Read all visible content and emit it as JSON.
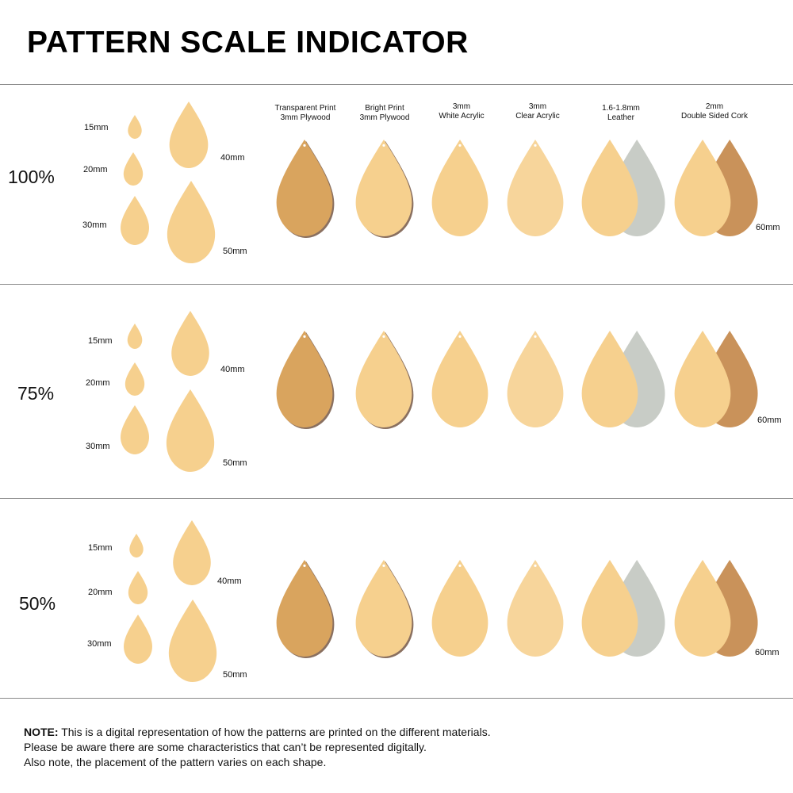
{
  "title": "PATTERN SCALE INDICATOR",
  "colors": {
    "red": "#c8282b",
    "green": "#6f8a2a",
    "orange": "#e8862a",
    "cream": "#f6d08e",
    "plywood": "#d9a45e",
    "cork": "#c9925a",
    "suede": "#c8ccc6",
    "acrylic_edge": "#8a7060"
  },
  "materials": [
    {
      "line1": "Transparent Print",
      "line2": "3mm Plywood"
    },
    {
      "line1": "Bright Print",
      "line2": "3mm Plywood"
    },
    {
      "line1": "3mm",
      "line2": "White Acrylic"
    },
    {
      "line1": "3mm",
      "line2": "Clear Acrylic"
    },
    {
      "line1": "1.6-1.8mm",
      "line2": "Leather"
    },
    {
      "line1": "2mm",
      "line2": "Double Sided Cork"
    }
  ],
  "sections": [
    {
      "scale": "100%",
      "sizes": [
        "15mm",
        "20mm",
        "30mm",
        "40mm",
        "50mm"
      ],
      "material_size": "60mm"
    },
    {
      "scale": "75%",
      "sizes": [
        "15mm",
        "20mm",
        "30mm",
        "40mm",
        "50mm"
      ],
      "material_size": "60mm"
    },
    {
      "scale": "50%",
      "sizes": [
        "15mm",
        "20mm",
        "30mm",
        "40mm",
        "50mm"
      ],
      "material_size": "60mm"
    }
  ],
  "note": {
    "label": "NOTE:",
    "line1": " This is a digital representation of how the patterns are printed on the different materials.",
    "line2": "Please be aware there are some characteristics that can’t be represented digitally.",
    "line3": "Also note, the placement of the pattern varies on each shape."
  }
}
